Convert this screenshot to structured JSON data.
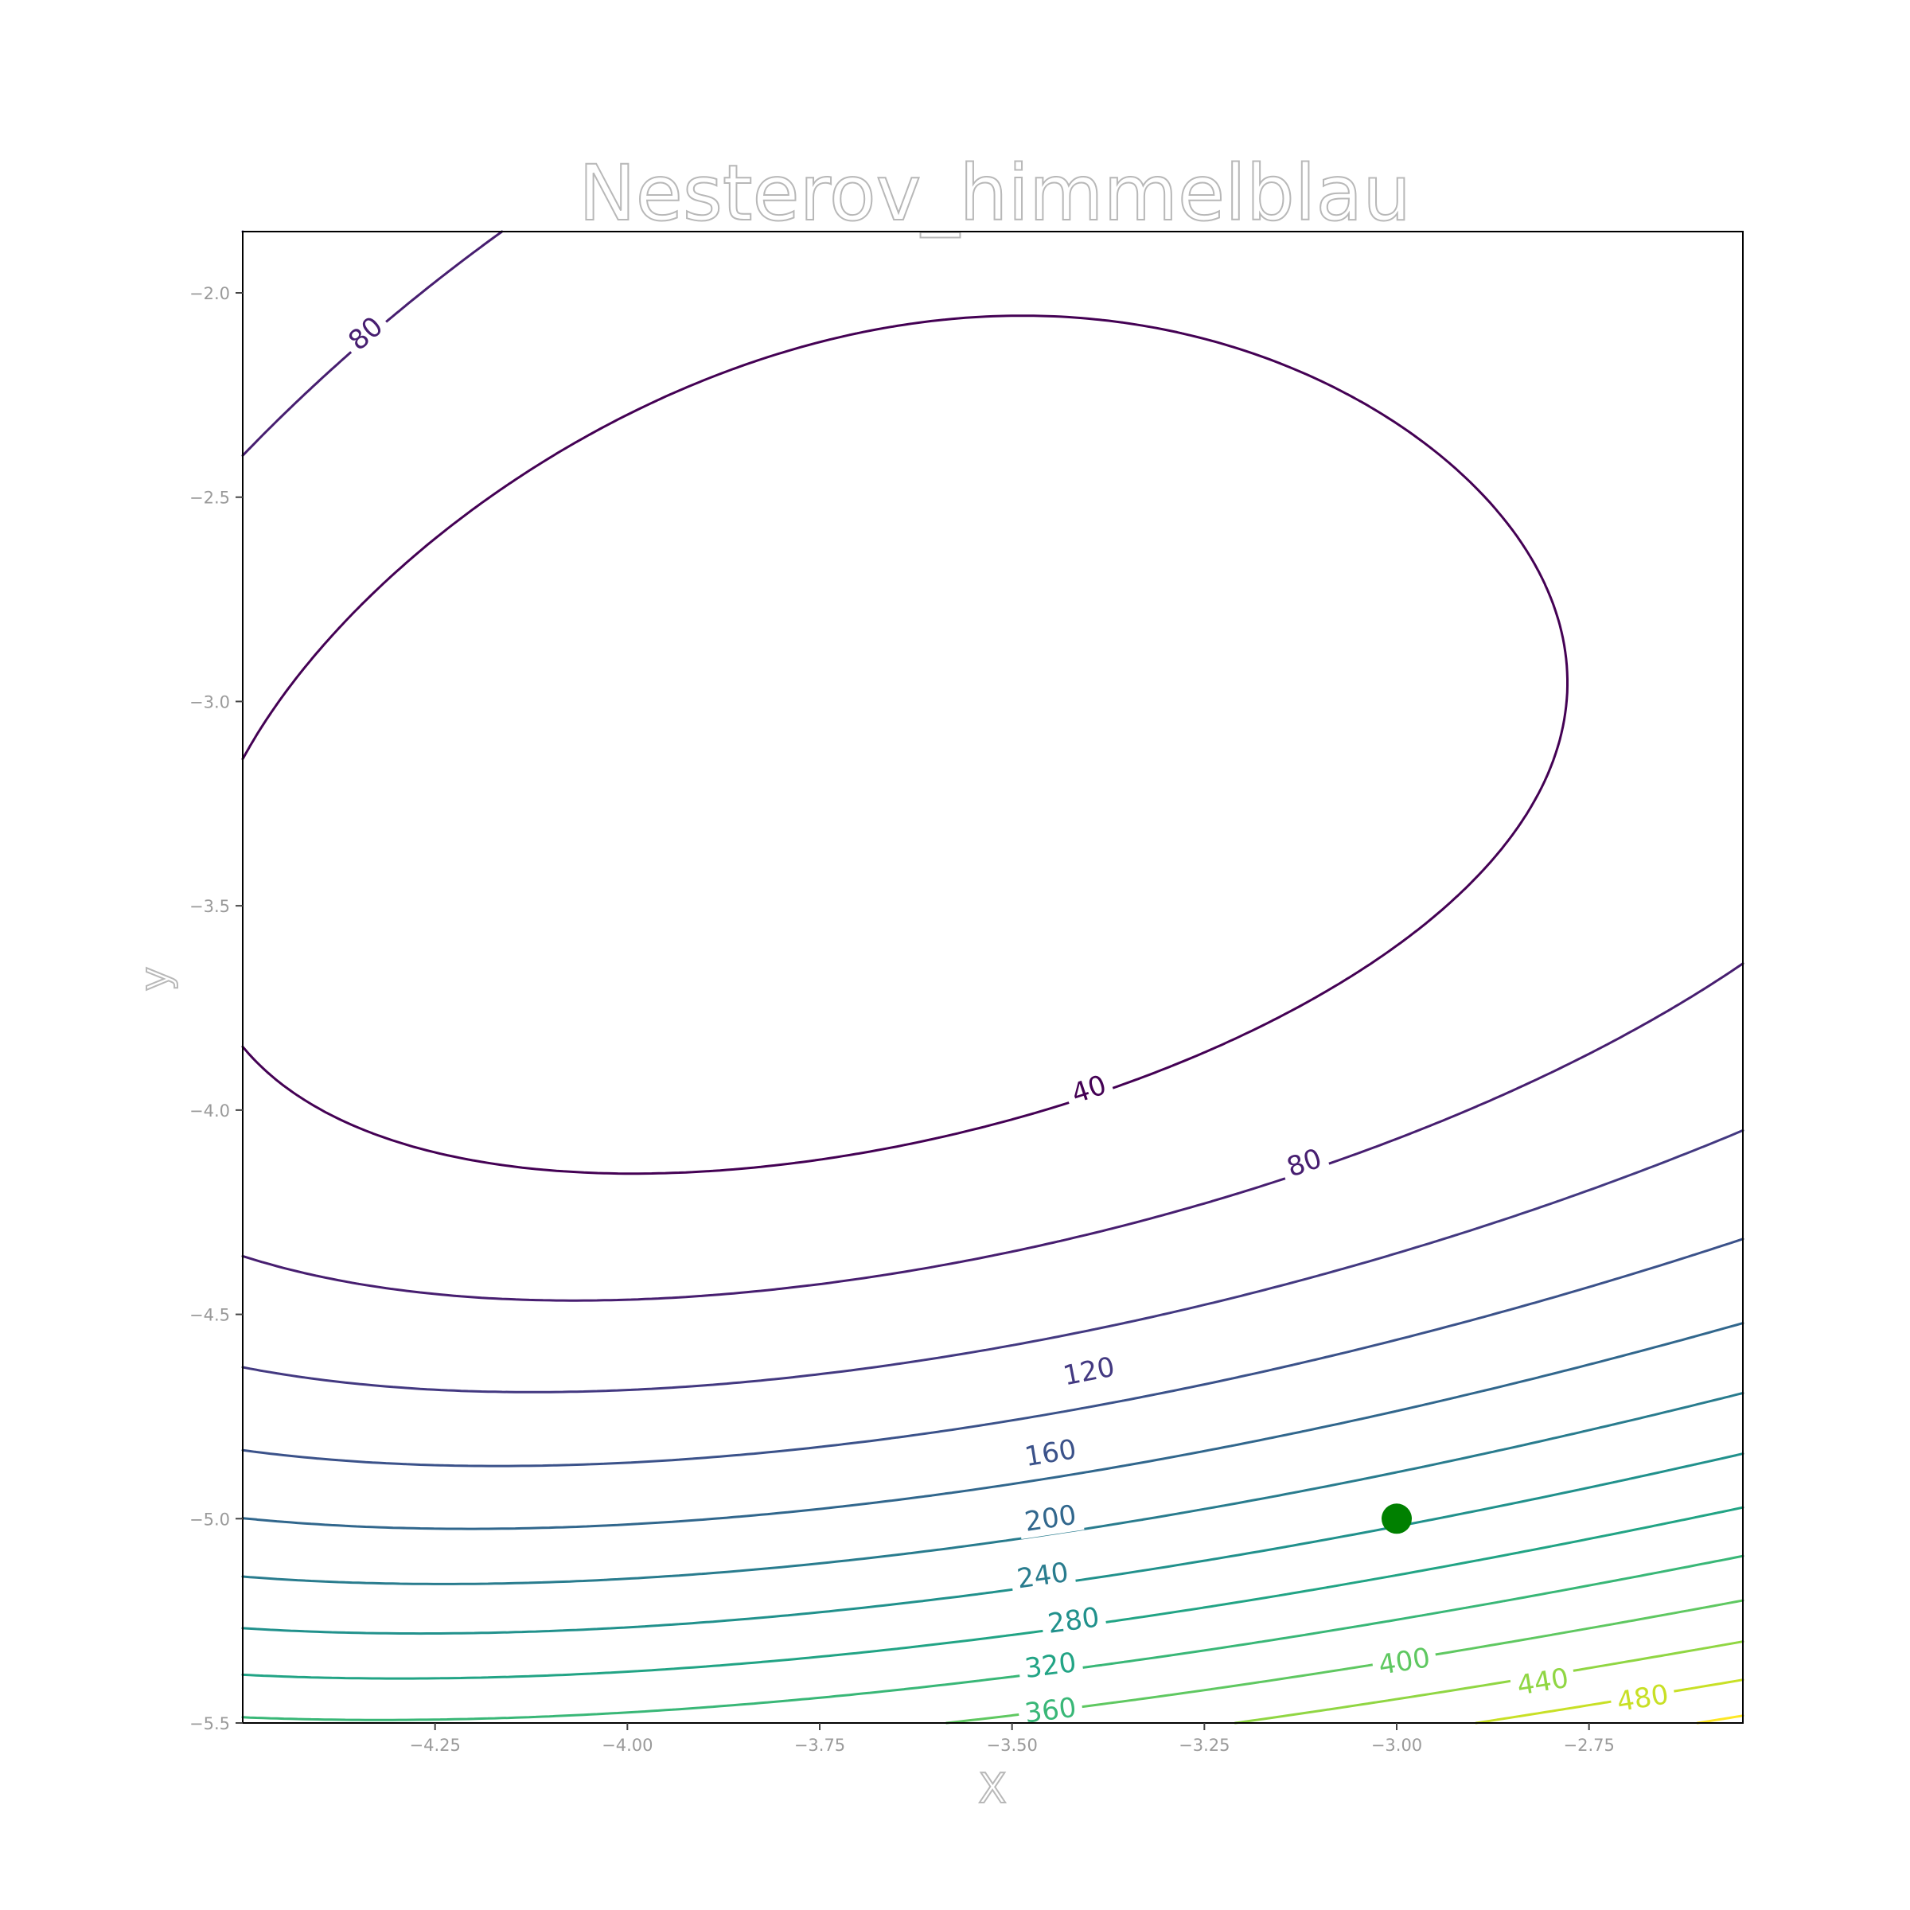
{
  "chart_data": {
    "type": "contour",
    "title": "Nesterov_himmelblau",
    "xlabel": "X",
    "ylabel": "y",
    "xlim": [
      -4.5,
      -2.55
    ],
    "ylim": [
      -5.5,
      -1.85
    ],
    "x_ticks": [
      -4.25,
      -4.0,
      -3.75,
      -3.5,
      -3.25,
      -3.0,
      -2.75
    ],
    "x_tick_labels": [
      "−4.25",
      "−4.00",
      "−3.75",
      "−3.50",
      "−3.25",
      "−3.00",
      "−2.75"
    ],
    "y_ticks": [
      -2.0,
      -2.5,
      -3.0,
      -3.5,
      -4.0,
      -4.5,
      -5.0,
      -5.5
    ],
    "y_tick_labels": [
      "−2.0",
      "−2.5",
      "−3.0",
      "−3.5",
      "−4.0",
      "−4.5",
      "−5.0",
      "−5.5"
    ],
    "function": "himmelblau",
    "colormap": "viridis",
    "levels": [
      40,
      80,
      120,
      160,
      200,
      240,
      280,
      320,
      360,
      400,
      440,
      480,
      520
    ],
    "contour_labels": [
      {
        "text": "80",
        "x": -4.34,
        "y": -2.1
      },
      {
        "text": "40",
        "x": -3.4,
        "y": -3.95
      },
      {
        "text": "80",
        "x": -3.12,
        "y": -4.13
      },
      {
        "text": "120",
        "x": -3.4,
        "y": -4.64
      },
      {
        "text": "160",
        "x": -3.45,
        "y": -4.84
      },
      {
        "text": "200",
        "x": -3.45,
        "y": -5.0
      },
      {
        "text": "240",
        "x": -3.46,
        "y": -5.14
      },
      {
        "text": "280",
        "x": -3.42,
        "y": -5.25
      },
      {
        "text": "320",
        "x": -3.45,
        "y": -5.36
      },
      {
        "text": "360",
        "x": -3.45,
        "y": -5.47
      },
      {
        "text": "400",
        "x": -2.99,
        "y": -5.35
      },
      {
        "text": "440",
        "x": -2.81,
        "y": -5.4
      },
      {
        "text": "480",
        "x": -2.68,
        "y": -5.44
      }
    ],
    "marker": {
      "x": -3.0,
      "y": -5.0,
      "color": "#008000"
    },
    "grid": false
  }
}
